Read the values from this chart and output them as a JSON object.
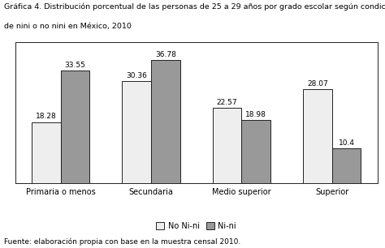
{
  "title_line1": "Gráfica 4. Distribución porcentual de las personas de 25 a 29 años por grado escolar según condición",
  "title_line2": "de nini o no nini en México, 2010",
  "categories": [
    "Primaria o menos",
    "Secundaria",
    "Medio superior",
    "Superior"
  ],
  "no_nini": [
    18.28,
    30.36,
    22.57,
    28.07
  ],
  "nini": [
    33.55,
    36.78,
    18.98,
    10.4
  ],
  "no_nini_color": "#eeeeee",
  "nini_color": "#999999",
  "bar_edge_color": "#222222",
  "ylim": [
    0,
    42
  ],
  "legend_label_1": "No Ni-ni",
  "legend_label_2": "Ni-ni",
  "footnote": "Fuente: elaboración propia con base en la muestra censal 2010.",
  "label_fontsize": 6.5,
  "title_fontsize": 6.8,
  "tick_fontsize": 7,
  "legend_fontsize": 7,
  "footnote_fontsize": 6.5
}
